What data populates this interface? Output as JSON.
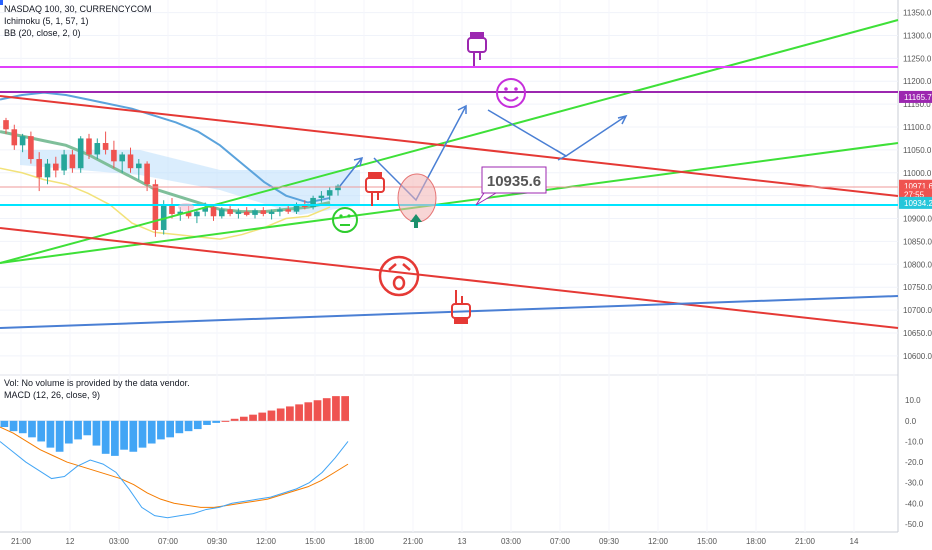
{
  "legend": {
    "symbol": "NASDAQ 100, 30, CURRENCYCOM",
    "ichimoku": "Ichimoku (5, 1, 57, 1)",
    "bb": "BB (20, close, 2, 0)",
    "vol": "Vol: No volume is provided by the data vendor.",
    "macd": "MACD (12, 26, close, 9)"
  },
  "price_badges": [
    {
      "label": "11165.7",
      "price": 11165.7,
      "color": "#9c27b0"
    },
    {
      "label": "10971.6",
      "price": 10971.6,
      "color": "#ef5350"
    },
    {
      "label": "27:55",
      "price": 10953,
      "color": "#ef5350"
    },
    {
      "label": "10934.2",
      "price": 10934.2,
      "color": "#26c6da"
    }
  ],
  "callout": {
    "label": "10935.6"
  },
  "colors": {
    "bull": "#26a69a",
    "bear": "#ef5350",
    "green_line": "#3ee038",
    "red_line": "#e53935",
    "purple_line": "#9c27b0",
    "magenta_line": "#e040fb",
    "blue_line": "#4a7fd4",
    "cyan_line": "#00e5ff",
    "macd_line": "#42a5f5",
    "signal_line": "#f57c00"
  },
  "chart_data": {
    "type": "candlestick",
    "price_axis": {
      "ticks": [
        "11350.0",
        "11300.0",
        "11250.0",
        "11200.0",
        "11150.0",
        "11100.0",
        "11050.0",
        "11000.0",
        "10950.0",
        "10900.0",
        "10850.0",
        "10800.0",
        "10750.0",
        "10700.0",
        "10650.0",
        "10600.0"
      ],
      "ylim": [
        10580,
        11360
      ]
    },
    "macd_axis": {
      "ticks": [
        "10.0",
        "0.0",
        "-10.0",
        "-20.0",
        "-30.0",
        "-40.0",
        "-50.0"
      ],
      "ylim": [
        -52,
        14
      ]
    },
    "time_axis": {
      "ticks": [
        "21:00",
        "12",
        "03:00",
        "07:00",
        "09:30",
        "12:00",
        "15:00",
        "18:00",
        "21:00",
        "13",
        "03:00",
        "07:00",
        "09:30",
        "12:00",
        "15:00",
        "18:00",
        "21:00",
        "14"
      ]
    },
    "candles": [
      [
        11115,
        11120,
        11085,
        11095
      ],
      [
        11095,
        11105,
        11050,
        11060
      ],
      [
        11060,
        11085,
        11045,
        11080
      ],
      [
        11080,
        11090,
        11020,
        11030
      ],
      [
        11030,
        11045,
        10960,
        10990
      ],
      [
        10990,
        11030,
        10975,
        11020
      ],
      [
        11020,
        11035,
        10990,
        11005
      ],
      [
        11005,
        11050,
        10995,
        11040
      ],
      [
        11040,
        11050,
        11000,
        11010
      ],
      [
        11010,
        11080,
        11000,
        11075
      ],
      [
        11075,
        11085,
        11030,
        11040
      ],
      [
        11040,
        11075,
        11030,
        11065
      ],
      [
        11065,
        11090,
        11040,
        11050
      ],
      [
        11050,
        11070,
        11010,
        11025
      ],
      [
        11025,
        11045,
        11000,
        11040
      ],
      [
        11040,
        11055,
        11000,
        11010
      ],
      [
        11010,
        11030,
        10985,
        11020
      ],
      [
        11020,
        11025,
        10960,
        10975
      ],
      [
        10975,
        10985,
        10860,
        10875
      ],
      [
        10875,
        10940,
        10865,
        10930
      ],
      [
        10930,
        10945,
        10900,
        10910
      ],
      [
        10910,
        10925,
        10895,
        10915
      ],
      [
        10915,
        10930,
        10900,
        10905
      ],
      [
        10905,
        10920,
        10890,
        10915
      ],
      [
        10915,
        10935,
        10905,
        10925
      ],
      [
        10925,
        10930,
        10895,
        10905
      ],
      [
        10905,
        10925,
        10900,
        10920
      ],
      [
        10920,
        10930,
        10905,
        10910
      ],
      [
        10910,
        10922,
        10900,
        10915
      ],
      [
        10915,
        10925,
        10905,
        10908
      ],
      [
        10908,
        10922,
        10900,
        10918
      ],
      [
        10918,
        10925,
        10905,
        10910
      ],
      [
        10910,
        10920,
        10898,
        10915
      ],
      [
        10915,
        10925,
        10905,
        10920
      ],
      [
        10920,
        10930,
        10910,
        10915
      ],
      [
        10915,
        10935,
        10910,
        10930
      ],
      [
        10930,
        10940,
        10920,
        10925
      ],
      [
        10925,
        10950,
        10920,
        10945
      ],
      [
        10945,
        10960,
        10935,
        10950
      ],
      [
        10950,
        10970,
        10940,
        10962
      ],
      [
        10962,
        10975,
        10950,
        10971.6
      ]
    ],
    "bb_upper": [
      11160,
      11170,
      11175,
      11170,
      11160,
      11150,
      11140,
      11125,
      11110,
      11090,
      11060,
      11020,
      10980,
      10950,
      10935,
      10945
    ],
    "bb_lower": [
      11010,
      11000,
      10985,
      10975,
      10955,
      10930,
      10890,
      10870,
      10865,
      10860,
      10855,
      10865,
      10880,
      10900,
      10905,
      10925
    ],
    "bb_basis": [
      11090,
      11080,
      11070,
      11060,
      11040,
      11015,
      10990,
      10965,
      10950,
      10935,
      10920,
      10915,
      10915,
      10920,
      10925,
      10935
    ],
    "macd_hist": [
      -3,
      -5,
      -6,
      -8,
      -10,
      -13,
      -15,
      -11,
      -9,
      -7,
      -12,
      -16,
      -17,
      -14,
      -15,
      -13,
      -11,
      -9,
      -8,
      -6,
      -5,
      -4,
      -2,
      -1,
      0,
      1,
      2,
      3,
      4,
      5,
      6,
      7,
      8,
      9,
      10,
      11,
      12,
      12
    ],
    "macd_line": [
      -10,
      -15,
      -20,
      -24,
      -28,
      -27,
      -22,
      -19,
      -21,
      -25,
      -33,
      -42,
      -46,
      -47,
      -46,
      -45,
      -43,
      -42,
      -40,
      -39,
      -38,
      -37,
      -35,
      -33,
      -30,
      -25,
      -18,
      -10
    ],
    "signal_line": [
      -3,
      -6,
      -10,
      -14,
      -17,
      -20,
      -22,
      -24,
      -26,
      -28,
      -31,
      -35,
      -38,
      -40,
      -41,
      -42,
      -42,
      -41,
      -40,
      -39,
      -38,
      -36,
      -34,
      -32,
      -29,
      -25,
      -21
    ]
  }
}
